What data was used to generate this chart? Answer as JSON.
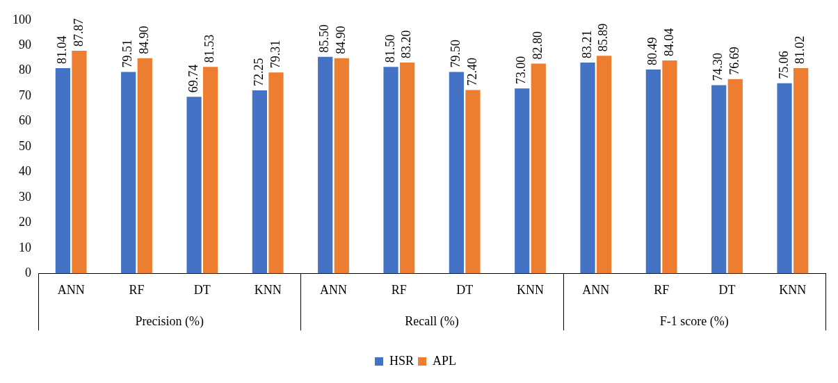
{
  "chart_data": {
    "type": "bar",
    "categories": [
      "ANN",
      "RF",
      "DT",
      "KNN",
      "ANN",
      "RF",
      "DT",
      "KNN",
      "ANN",
      "RF",
      "DT",
      "KNN"
    ],
    "series": [
      {
        "name": "HSR",
        "color": "#4472c4",
        "values": [
          81.04,
          79.51,
          69.74,
          72.25,
          85.5,
          81.5,
          79.5,
          73.0,
          83.21,
          80.49,
          74.3,
          75.06
        ],
        "value_labels": [
          "81.04",
          "79.51",
          "69.74",
          "72.25",
          "85.50",
          "81.50",
          "79.50",
          "73.00",
          "83.21",
          "80.49",
          "74.30",
          "75.06"
        ]
      },
      {
        "name": "APL",
        "color": "#ed7d31",
        "values": [
          87.87,
          84.9,
          81.53,
          79.31,
          84.9,
          83.2,
          72.4,
          82.8,
          85.89,
          84.04,
          76.69,
          81.02
        ],
        "value_labels": [
          "87.87",
          "84.90",
          "81.53",
          "79.31",
          "84.90",
          "83.20",
          "72.40",
          "82.80",
          "85.89",
          "84.04",
          "76.69",
          "81.02"
        ]
      }
    ],
    "annotations": [
      "Precision (%)",
      "Recall (%)",
      "F-1 score (%)"
    ],
    "ylim": [
      0,
      100
    ],
    "yticks": [
      0,
      10,
      20,
      30,
      40,
      50,
      60,
      70,
      80,
      90,
      100
    ],
    "grid": false,
    "legend": "bottom"
  }
}
